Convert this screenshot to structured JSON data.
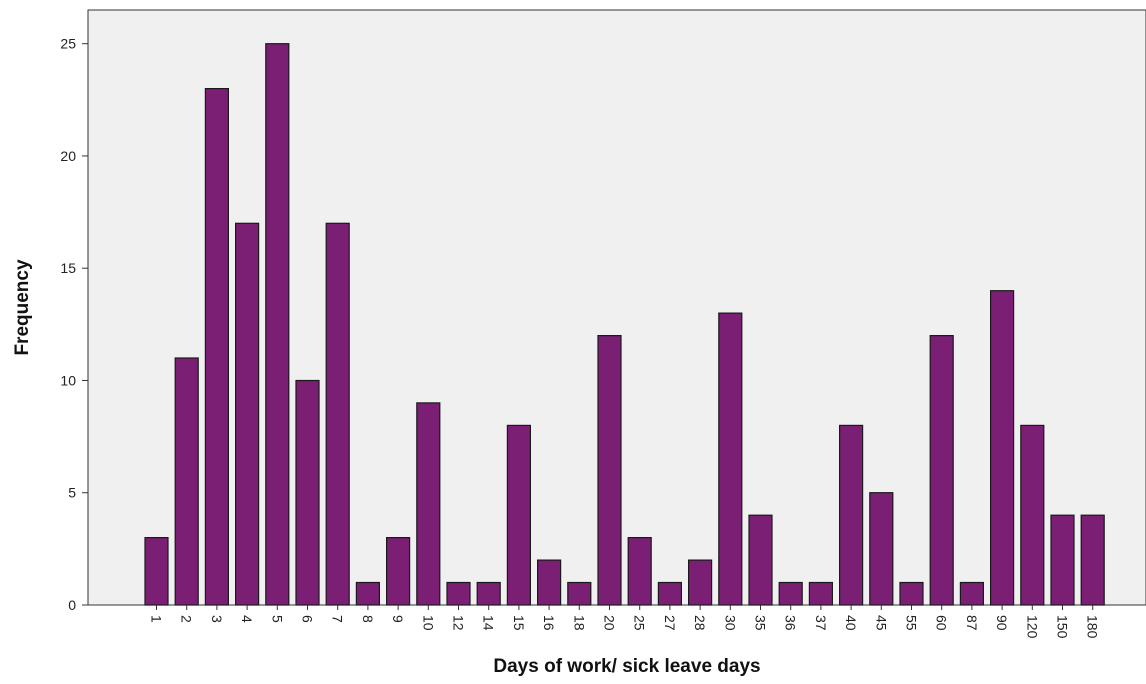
{
  "chart_data": {
    "type": "bar",
    "xlabel": "Days of work/ sick leave days",
    "ylabel": "Frequency",
    "ylim": [
      0,
      26.5
    ],
    "yticks": [
      0,
      5,
      10,
      15,
      20,
      25
    ],
    "grid": false,
    "categories": [
      "1",
      "2",
      "3",
      "4",
      "5",
      "6",
      "7",
      "8",
      "9",
      "10",
      "12",
      "14",
      "15",
      "16",
      "18",
      "20",
      "25",
      "27",
      "28",
      "30",
      "35",
      "36",
      "37",
      "40",
      "45",
      "55",
      "60",
      "87",
      "90",
      "120",
      "150",
      "180"
    ],
    "values": [
      3,
      11,
      23,
      17,
      25,
      10,
      17,
      1,
      3,
      9,
      1,
      1,
      8,
      2,
      1,
      12,
      3,
      1,
      2,
      13,
      4,
      1,
      1,
      8,
      5,
      1,
      12,
      1,
      14,
      8,
      4,
      4
    ],
    "colors": {
      "bar_fill": "#7a1f74",
      "bar_stroke": "#1a1a1a",
      "plot_background": "#f0f0f0",
      "axis": "#333333"
    }
  }
}
